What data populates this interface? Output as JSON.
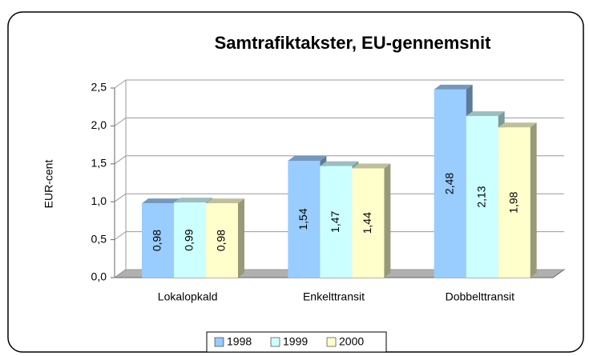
{
  "chart_data": {
    "type": "bar3d",
    "title": "Samtrafiktakster, EU-gennemsnit",
    "y_label": "EUR-cent",
    "categories": [
      "Lokalopkald",
      "Enkelttransit",
      "Dobbelttransit"
    ],
    "series": [
      {
        "name": "1998",
        "color": "#99ccff",
        "values": [
          0.98,
          1.54,
          2.48
        ],
        "value_labels": [
          "0,98",
          "1,54",
          "2,48"
        ]
      },
      {
        "name": "1999",
        "color": "#ccffff",
        "values": [
          0.99,
          1.47,
          2.13
        ],
        "value_labels": [
          "0,99",
          "1,47",
          "2,13"
        ]
      },
      {
        "name": "2000",
        "color": "#ffffcc",
        "values": [
          0.98,
          1.44,
          1.98
        ],
        "value_labels": [
          "0,98",
          "1,44",
          "1,98"
        ]
      }
    ],
    "ylim": [
      0,
      2.5
    ],
    "yticks": [
      {
        "value": 0,
        "label": "0,0"
      },
      {
        "value": 0.5,
        "label": "0,5"
      },
      {
        "value": 1,
        "label": "1,0"
      },
      {
        "value": 1.5,
        "label": "1,5"
      },
      {
        "value": 2,
        "label": "2,0"
      },
      {
        "value": 2.5,
        "label": "2,5"
      }
    ],
    "grid": true,
    "legend": "bottom"
  }
}
